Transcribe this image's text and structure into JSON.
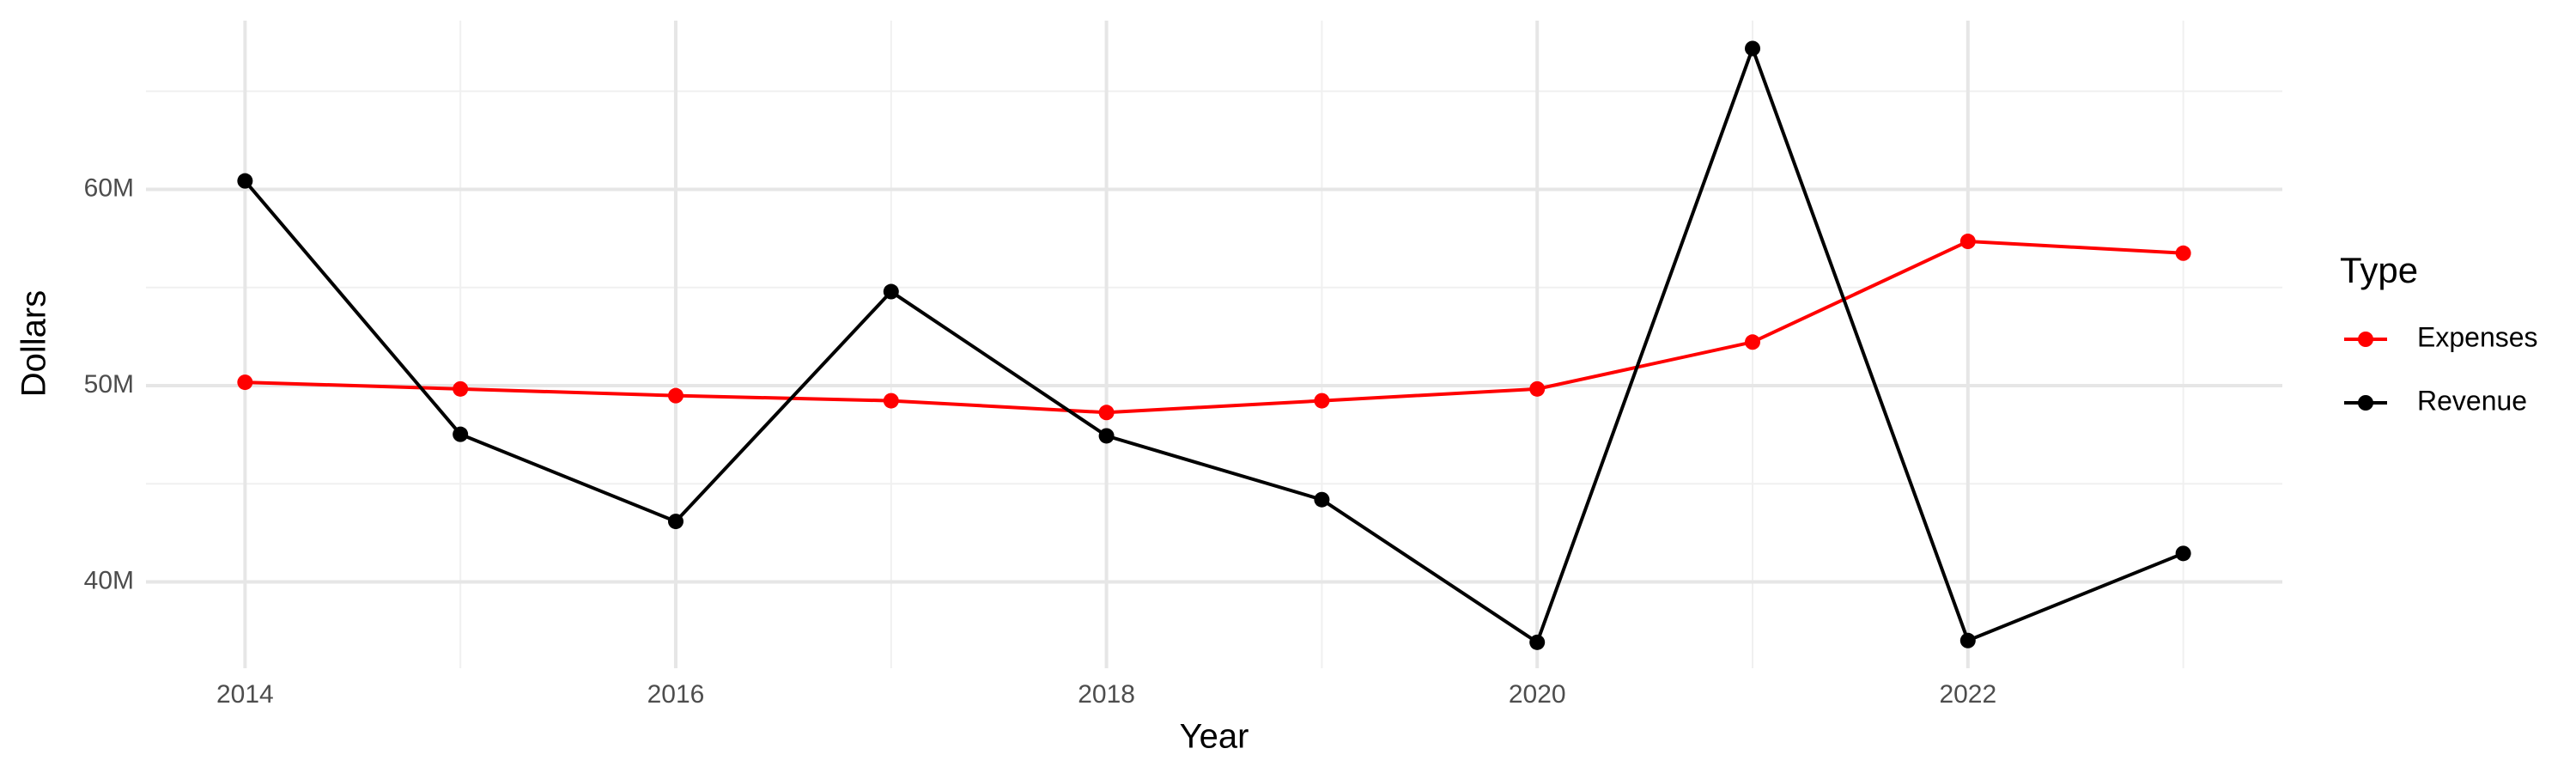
{
  "chart_data": {
    "type": "line",
    "x_label": "Year",
    "y_label": "Dollars",
    "legend_title": "Type",
    "x": [
      2014,
      2015,
      2016,
      2017,
      2018,
      2019,
      2020,
      2021,
      2022,
      2023
    ],
    "series": [
      {
        "name": "Expenses",
        "color": "#ff0000",
        "values": [
          50170000,
          49830000,
          49490000,
          49230000,
          48630000,
          49230000,
          49830000,
          52220000,
          57350000,
          56750000
        ]
      },
      {
        "name": "Revenue",
        "color": "#000000",
        "values": [
          60430000,
          47520000,
          43080000,
          54790000,
          47440000,
          44190000,
          36920000,
          67180000,
          37010000,
          41450000
        ]
      }
    ],
    "xlim": [
      2013.54,
      2023.46
    ],
    "xticks": [
      2014,
      2016,
      2018,
      2020,
      2022
    ],
    "xminor": [
      2015,
      2017,
      2019,
      2021,
      2023
    ],
    "ylim": [
      35600000,
      68600000
    ],
    "yticks": [
      {
        "value": 40000000,
        "label": "40M"
      },
      {
        "value": 50000000,
        "label": "50M"
      },
      {
        "value": 60000000,
        "label": "60M"
      }
    ],
    "yminor": [
      45000000,
      55000000,
      65000000
    ],
    "grid": true,
    "legend": "right"
  }
}
